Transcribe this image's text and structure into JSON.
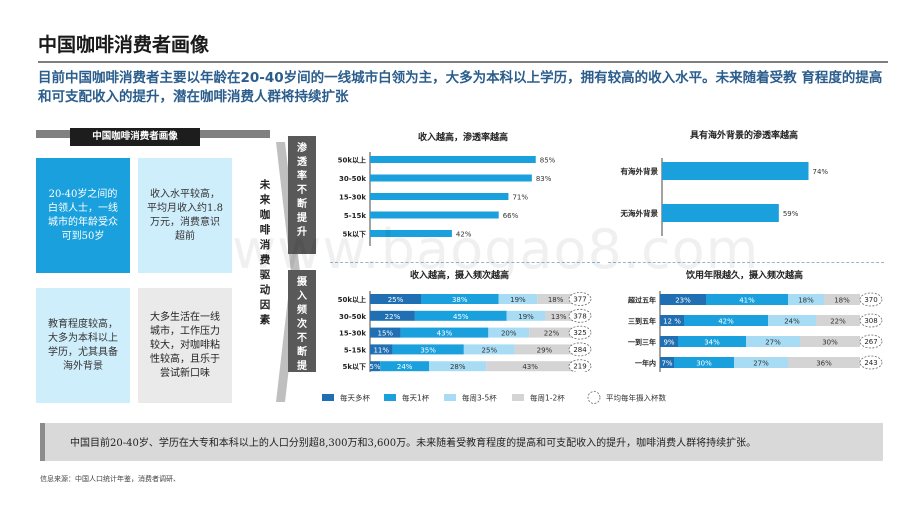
{
  "page": {
    "title": "中国咖啡消费者画像",
    "subtitle": "目前中国咖啡消费者主要以年龄在20-40岁间的一线城市白领为主，大多为本科以上学历，拥有较高的收入水平。未来随着受教 育程度的提高和可支配收入的提升，潜在咖啡消费人群将持续扩张",
    "watermark": "www.baogao8.com"
  },
  "left_panel": {
    "header": "中国咖啡消费者画像",
    "cards": [
      {
        "text": "20-40岁之间的白领人士，一线城市的年龄受众可到50岁"
      },
      {
        "text": "收入水平较高，平均月收入约1.8万元，消费意识超前"
      },
      {
        "text": "教育程度较高，大多为本科以上学历，尤其具备海外背景"
      },
      {
        "text": "大多生活在一线城市，工作压力较大，对咖啡粘性较高，且乐于尝试新口味"
      }
    ],
    "driver_label": "未来咖啡消费驱动因素"
  },
  "side_labels": {
    "top": "渗透率不断提升",
    "bottom": "摄入频次不断提升"
  },
  "chart_data": [
    {
      "type": "bar",
      "orientation": "horizontal",
      "title": "收入越高，渗透率越高",
      "categories": [
        "50k以上",
        "30-50k",
        "15-30k",
        "5-15k",
        "5k以下"
      ],
      "values": [
        85,
        83,
        71,
        66,
        42
      ],
      "value_suffix": "%",
      "xlim": [
        0,
        100
      ],
      "color": "#1aa0dc"
    },
    {
      "type": "bar",
      "orientation": "horizontal",
      "title": "具有海外背景的渗透率越高",
      "categories": [
        "有海外背景",
        "无海外背景"
      ],
      "values": [
        74,
        59
      ],
      "value_suffix": "%",
      "xlim": [
        0,
        100
      ],
      "color": "#1aa0dc"
    },
    {
      "type": "bar",
      "orientation": "horizontal",
      "stacked": true,
      "title": "收入越高，摄入频次越高",
      "categories": [
        "50k以上",
        "30-50k",
        "15-30k",
        "5-15k",
        "5k以下"
      ],
      "series": [
        {
          "name": "每天多杯",
          "values": [
            25,
            22,
            15,
            11,
            5
          ],
          "color": "#1f6fb2"
        },
        {
          "name": "每天1杯",
          "values": [
            38,
            45,
            43,
            35,
            24
          ],
          "color": "#1aa0dc"
        },
        {
          "name": "每周3-5杯",
          "values": [
            19,
            19,
            20,
            25,
            28
          ],
          "color": "#a8dcf4"
        },
        {
          "name": "每周1-2杯",
          "values": [
            18,
            13,
            22,
            29,
            43
          ],
          "color": "#d4d4d4"
        }
      ],
      "labels": [
        [
          "25%",
          "38%",
          "19%",
          "18%"
        ],
        [
          "22%",
          "45%",
          "19%",
          "13%"
        ],
        [
          "15%",
          "43%",
          "20%",
          "22%"
        ],
        [
          "11%",
          "35%",
          "25%",
          "29%"
        ],
        [
          "5%",
          "24%",
          "28%",
          "43%"
        ]
      ],
      "avg_cups": [
        377,
        378,
        325,
        284,
        219
      ]
    },
    {
      "type": "bar",
      "orientation": "horizontal",
      "stacked": true,
      "title": "饮用年限越久，摄入频次越高",
      "categories": [
        "超过五年",
        "三到五年",
        "一到三年",
        "一年内"
      ],
      "series": [
        {
          "name": "每天多杯",
          "values": [
            23,
            12,
            9,
            7
          ],
          "color": "#1f6fb2"
        },
        {
          "name": "每天1杯",
          "values": [
            41,
            42,
            34,
            30
          ],
          "color": "#1aa0dc"
        },
        {
          "name": "每周3-5杯",
          "values": [
            18,
            24,
            27,
            27
          ],
          "color": "#a8dcf4"
        },
        {
          "name": "每周1-2杯",
          "values": [
            18,
            22,
            30,
            36
          ],
          "color": "#d4d4d4"
        }
      ],
      "labels": [
        [
          "23%",
          "41%",
          "18%",
          "18%"
        ],
        [
          "12 %",
          "42%",
          "24%",
          "22%"
        ],
        [
          "9%",
          "34%",
          "27%",
          "30%"
        ],
        [
          "7%",
          "30%",
          "27%",
          "36%"
        ]
      ],
      "avg_cups": [
        370,
        308,
        267,
        243
      ]
    }
  ],
  "legend": {
    "items": [
      "每天多杯",
      "每天1杯",
      "每周3-5杯",
      "每周1-2杯"
    ],
    "avg_label": "平均每年摄入杯数"
  },
  "footer": {
    "text": "中国目前20-40岁、学历在大专和本科以上的人口分别超8,300万和3,600万。未来随着受教育程度的提高和可支配收入的提升，咖啡消费人群将持续扩张。",
    "source": "信息来源：中国人口统计年鉴，消费者调研、"
  }
}
